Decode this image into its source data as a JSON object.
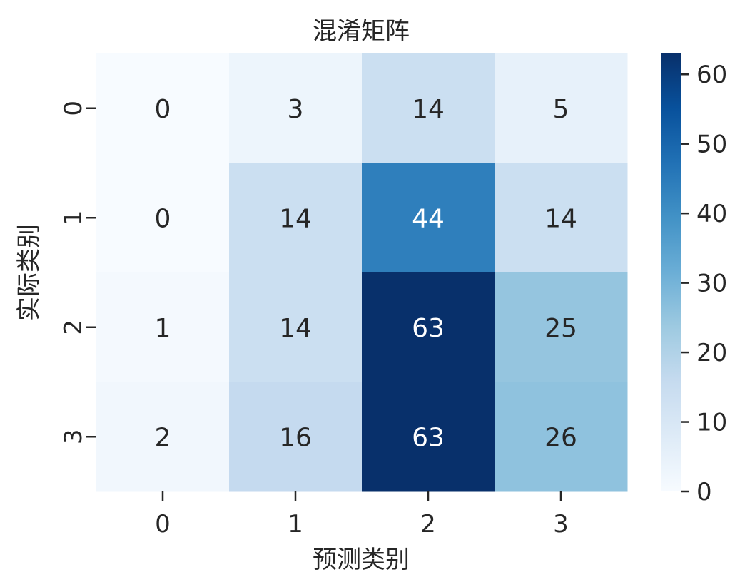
{
  "chart_data": {
    "type": "heatmap",
    "title": "混淆矩阵",
    "xlabel": "预测类别",
    "ylabel": "实际类别",
    "x_categories": [
      "0",
      "1",
      "2",
      "3"
    ],
    "y_categories": [
      "0",
      "1",
      "2",
      "3"
    ],
    "values": [
      [
        0,
        3,
        14,
        5
      ],
      [
        0,
        14,
        44,
        14
      ],
      [
        1,
        14,
        63,
        25
      ],
      [
        2,
        16,
        63,
        26
      ]
    ],
    "colormap": "Blues",
    "colorbar": {
      "range": [
        0,
        63
      ],
      "ticks": [
        0,
        10,
        20,
        30,
        40,
        50,
        60
      ]
    },
    "annotate": true,
    "grid": false
  }
}
